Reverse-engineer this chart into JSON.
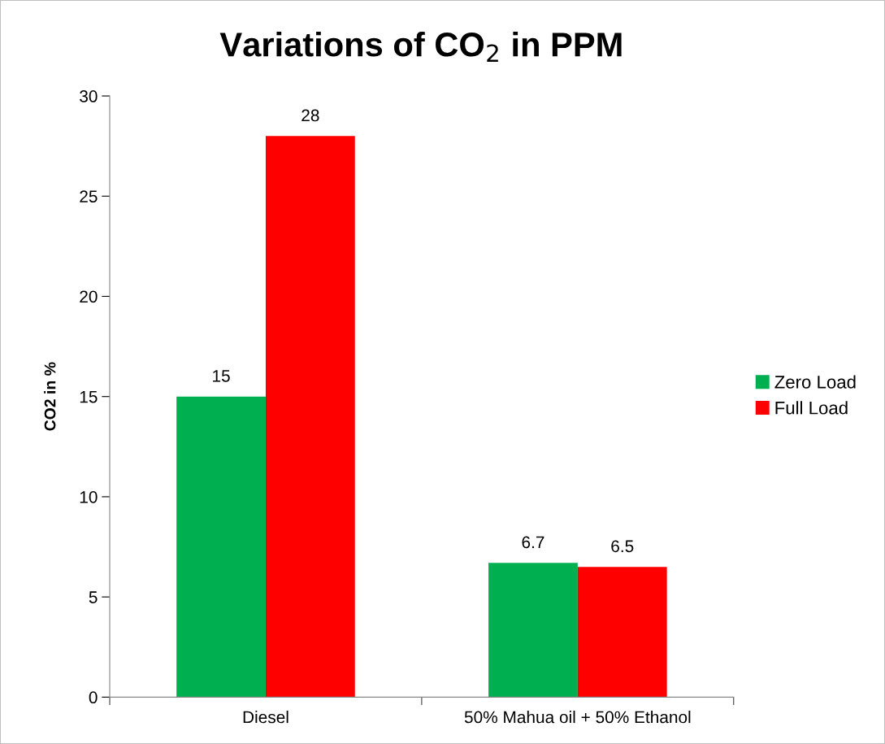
{
  "chart_data": {
    "type": "bar",
    "title": "Variations of CO$_{2}$ in PPM",
    "ylabel": "CO2 in %",
    "categories": [
      "Diesel",
      "50% Mahua oil + 50% Ethanol"
    ],
    "series": [
      {
        "name": "Zero Load",
        "color": "#00b050",
        "values": [
          15,
          6.7
        ]
      },
      {
        "name": "Full Load",
        "color": "#ff0000",
        "values": [
          28,
          6.5
        ]
      }
    ],
    "ylim": [
      0,
      30
    ],
    "yticks": [
      0,
      5,
      10,
      15,
      20,
      25,
      30
    ],
    "grid": false,
    "legend": "right",
    "data_labels": true
  }
}
